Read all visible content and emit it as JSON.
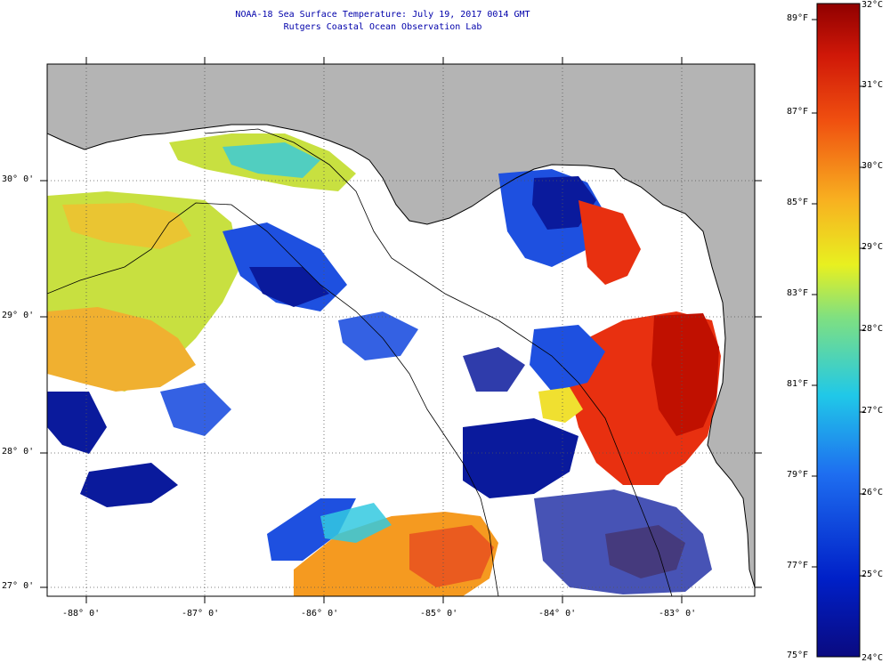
{
  "header": {
    "title": "NOAA-18 Sea Surface Temperature:  July 19, 2017 0014 GMT",
    "subtitle": "Rutgers Coastal Ocean Observation Lab"
  },
  "map": {
    "lon_labels": [
      "-88° 0'",
      "-87° 0'",
      "-86° 0'",
      "-85° 0'",
      "-84° 0'",
      "-83° 0'"
    ],
    "lat_labels": [
      "30° 0'",
      "29° 0'",
      "28° 0'",
      "27° 0'"
    ],
    "colors": {
      "land": "#b4b4b4",
      "cloud": "#ffffff",
      "cold": "#0a1a9c",
      "cool": "#1e50e0",
      "mild": "#33c9e0",
      "yellowgreen": "#c8e040",
      "yellow": "#f0e030",
      "orange": "#f59a20",
      "red": "#e83010",
      "darkred": "#c01000"
    }
  },
  "colorbar": {
    "fahrenheit_labels": [
      "89°F",
      "87°F",
      "85°F",
      "83°F",
      "81°F",
      "79°F",
      "77°F",
      "75°F"
    ],
    "celsius_labels": [
      "32°C",
      "31°C",
      "30°C",
      "29°C",
      "28°C",
      "27°C",
      "26°C",
      "25°C",
      "24°C"
    ]
  }
}
